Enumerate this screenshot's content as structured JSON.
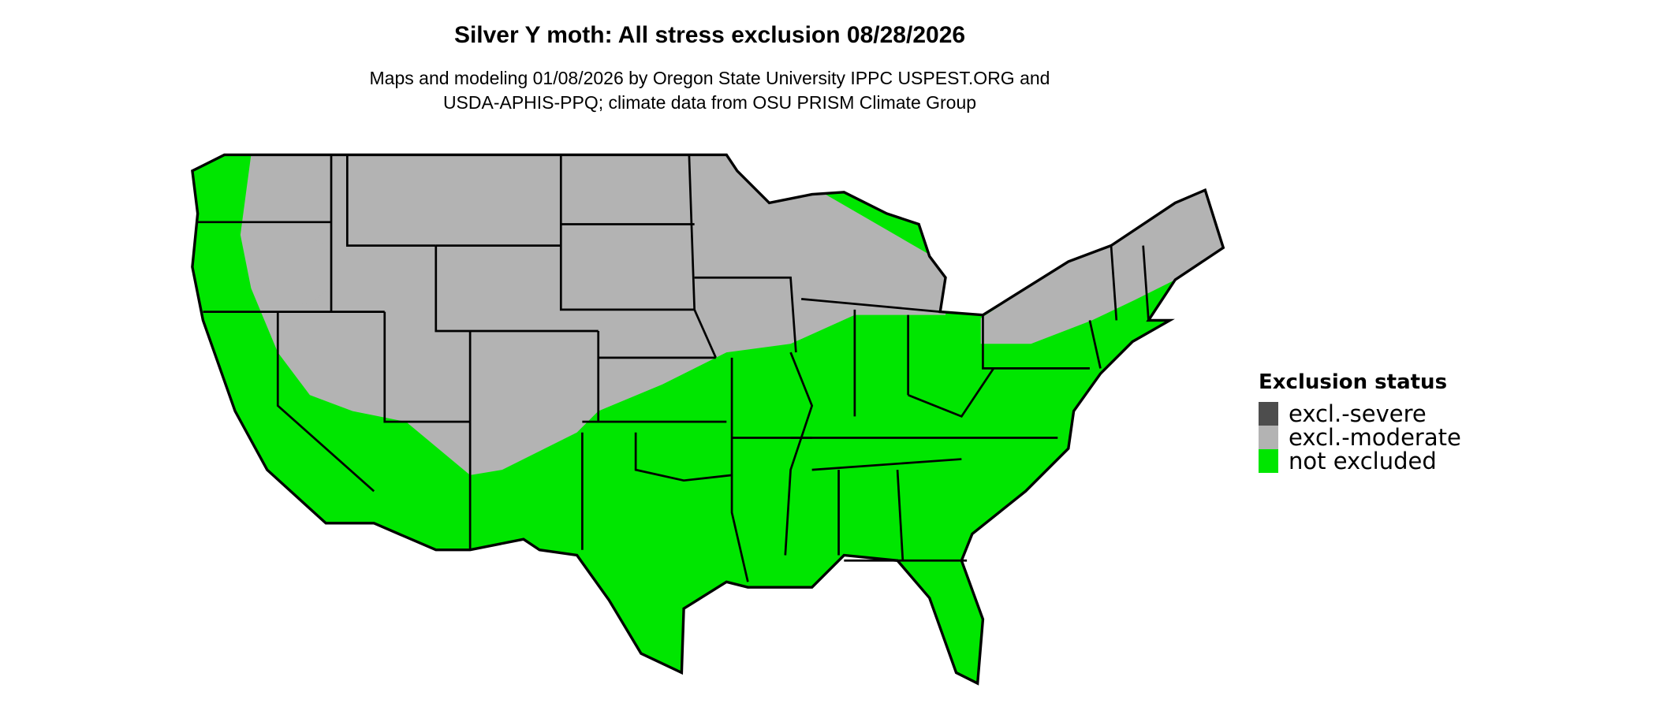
{
  "title": "Silver Y moth: All stress exclusion 08/28/2026",
  "subtitle_lines": [
    "Maps and modeling 01/08/2026 by Oregon State University IPPC USPEST.ORG and",
    "USDA-APHIS-PPQ; climate data from OSU PRISM Climate Group"
  ],
  "legend": {
    "title": "Exclusion status",
    "items": [
      {
        "label": "excl.-severe",
        "color": "#4d4d4d"
      },
      {
        "label": "excl.-moderate",
        "color": "#b3b3b3"
      },
      {
        "label": "not excluded",
        "color": "#00e600"
      }
    ]
  },
  "colors": {
    "state_border": "#000000",
    "background": "#ffffff"
  }
}
